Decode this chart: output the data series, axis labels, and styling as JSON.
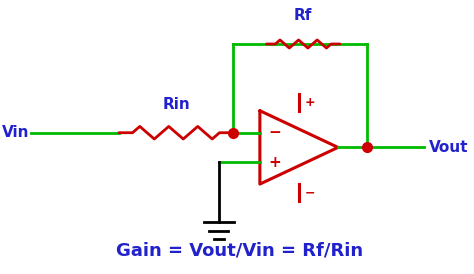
{
  "bg_color": "#ffffff",
  "wire_color": "#00bb00",
  "resistor_color": "#cc0000",
  "opamp_color": "#cc0000",
  "node_color": "#cc0000",
  "ground_color": "#000000",
  "label_color_blue": "#2222cc",
  "formula_color": "#2222cc",
  "formula_text": "Gain = Vout/Vin = Rf/Rin",
  "Rin_label": "Rin",
  "Rf_label": "Rf",
  "Vin_label": "Vin",
  "Vout_label": "Vout",
  "lw_wire": 2.0,
  "lw_resistor": 2.0,
  "lw_opamp": 2.2
}
